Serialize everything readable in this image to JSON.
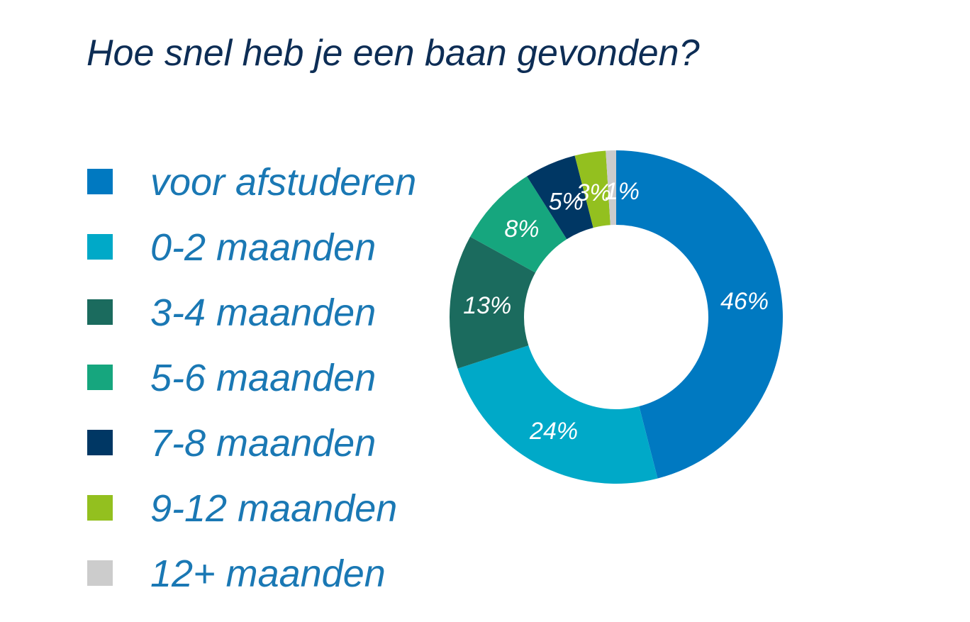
{
  "colors": {
    "title": "#0d2d55",
    "legend_text": "#1a78b4",
    "slice_label": "#ffffff"
  },
  "chart_data": {
    "type": "pie",
    "donut": true,
    "title": "Hoe snel heb je een baan gevonden?",
    "legend_placement": "left",
    "categories": [
      "voor afstuderen",
      "0-2 maanden",
      "3-4 maanden",
      "5-6 maanden",
      "7-8 maanden",
      "9-12 maanden",
      "12+ maanden"
    ],
    "values": [
      46,
      24,
      13,
      8,
      5,
      3,
      1
    ],
    "value_labels": [
      "46%",
      "24%",
      "13%",
      "8%",
      "5%",
      "3%",
      "1%"
    ],
    "colors": [
      "#0079c1",
      "#00a9c8",
      "#1b6b5e",
      "#16a67e",
      "#003764",
      "#93c01f",
      "#cccccc"
    ]
  }
}
